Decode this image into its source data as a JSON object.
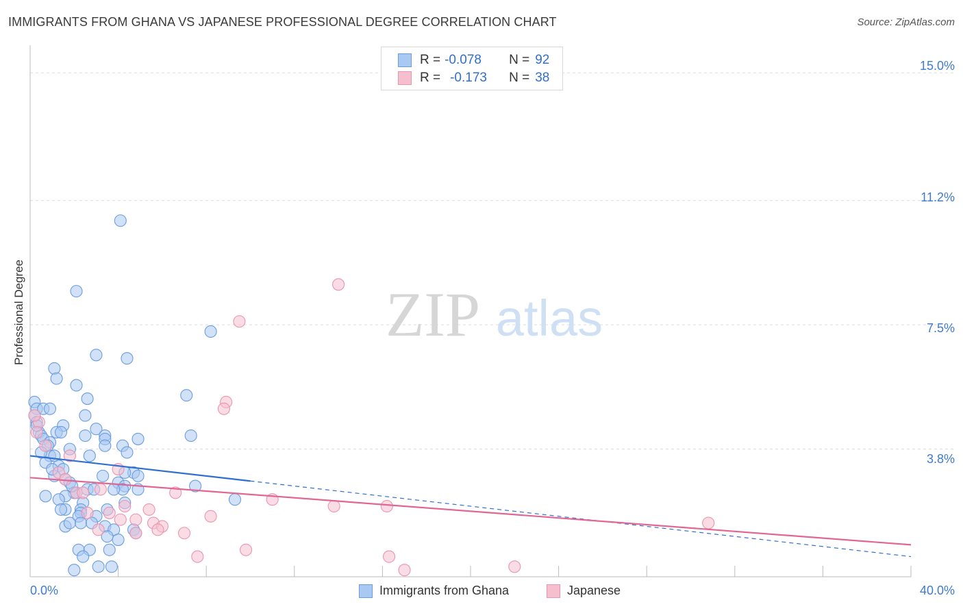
{
  "header": {
    "title": "IMMIGRANTS FROM GHANA VS JAPANESE PROFESSIONAL DEGREE CORRELATION CHART",
    "source": "Source: ZipAtlas.com"
  },
  "legend": {
    "rows": [
      {
        "r_label": "R =",
        "r_value": "-0.078",
        "n_label": "N =",
        "n_value": "92"
      },
      {
        "r_label": "R =",
        "r_value": "-0.173",
        "n_label": "N =",
        "n_value": "38"
      }
    ]
  },
  "watermark": {
    "zip": "ZIP",
    "atlas": "atlas"
  },
  "colors": {
    "ghana_fill": "#a9c8f2",
    "ghana_stroke": "#6a9de0",
    "ghana_line": "#2f6fd0",
    "japanese_fill": "#f6bfd0",
    "japanese_stroke": "#ea94b0",
    "japanese_line": "#e06792",
    "tick_text": "#3d7bd1"
  },
  "chart_data": {
    "type": "scatter",
    "title": "IMMIGRANTS FROM GHANA VS JAPANESE PROFESSIONAL DEGREE CORRELATION CHART",
    "xlabel": "",
    "ylabel": "Professional Degree",
    "xlim": [
      0,
      40
    ],
    "ylim": [
      0,
      15.7
    ],
    "x_tick_labels": [
      "0.0%",
      "40.0%"
    ],
    "y_ticks": [
      3.8,
      7.5,
      11.2,
      15.0
    ],
    "y_tick_labels": [
      "3.8%",
      "7.5%",
      "11.2%",
      "15.0%"
    ],
    "grid": true,
    "legend_position": "top-center",
    "series": [
      {
        "name": "Immigrants from Ghana",
        "r": -0.078,
        "n": 92,
        "trend": {
          "x0": 0,
          "y0": 3.6,
          "x1": 40,
          "y1": 0.6,
          "solid_until_x": 10
        },
        "points": [
          [
            4.1,
            10.6
          ],
          [
            2.1,
            8.5
          ],
          [
            8.2,
            7.3
          ],
          [
            3.0,
            6.6
          ],
          [
            4.4,
            6.5
          ],
          [
            1.1,
            6.2
          ],
          [
            1.2,
            5.9
          ],
          [
            2.1,
            5.7
          ],
          [
            2.6,
            5.3
          ],
          [
            7.1,
            5.4
          ],
          [
            0.2,
            5.2
          ],
          [
            0.3,
            5.0
          ],
          [
            0.6,
            5.0
          ],
          [
            0.9,
            5.0
          ],
          [
            2.5,
            4.8
          ],
          [
            0.2,
            4.8
          ],
          [
            0.3,
            4.6
          ],
          [
            1.5,
            4.5
          ],
          [
            3.0,
            4.4
          ],
          [
            1.2,
            4.3
          ],
          [
            1.4,
            4.3
          ],
          [
            0.4,
            4.3
          ],
          [
            0.5,
            4.2
          ],
          [
            2.5,
            4.2
          ],
          [
            3.4,
            4.2
          ],
          [
            4.9,
            4.1
          ],
          [
            7.3,
            4.2
          ],
          [
            0.6,
            4.1
          ],
          [
            0.9,
            4.0
          ],
          [
            3.4,
            4.1
          ],
          [
            0.8,
            3.9
          ],
          [
            3.4,
            3.9
          ],
          [
            4.2,
            3.9
          ],
          [
            1.8,
            3.8
          ],
          [
            4.4,
            3.7
          ],
          [
            2.7,
            3.6
          ],
          [
            0.9,
            3.6
          ],
          [
            1.1,
            3.6
          ],
          [
            0.7,
            3.4
          ],
          [
            1.3,
            3.3
          ],
          [
            1.5,
            3.2
          ],
          [
            4.7,
            3.1
          ],
          [
            3.3,
            3.0
          ],
          [
            1.1,
            3.0
          ],
          [
            4.9,
            3.0
          ],
          [
            1.6,
            2.9
          ],
          [
            4.0,
            2.8
          ],
          [
            1.8,
            2.8
          ],
          [
            7.5,
            2.7
          ],
          [
            4.3,
            2.7
          ],
          [
            4.2,
            2.6
          ],
          [
            4.9,
            2.6
          ],
          [
            2.1,
            2.5
          ],
          [
            2.0,
            2.5
          ],
          [
            1.6,
            2.4
          ],
          [
            0.7,
            2.4
          ],
          [
            9.3,
            2.3
          ],
          [
            1.3,
            2.3
          ],
          [
            2.4,
            2.2
          ],
          [
            4.3,
            2.2
          ],
          [
            2.3,
            2.0
          ],
          [
            1.6,
            2.0
          ],
          [
            3.5,
            2.0
          ],
          [
            2.3,
            1.9
          ],
          [
            2.2,
            1.8
          ],
          [
            3.0,
            1.8
          ],
          [
            2.3,
            1.6
          ],
          [
            1.6,
            1.5
          ],
          [
            1.8,
            1.6
          ],
          [
            3.4,
            1.5
          ],
          [
            3.8,
            1.4
          ],
          [
            4.7,
            1.4
          ],
          [
            4.8,
            1.3
          ],
          [
            3.5,
            1.2
          ],
          [
            4.0,
            1.1
          ],
          [
            2.2,
            0.8
          ],
          [
            3.6,
            0.8
          ],
          [
            2.7,
            0.8
          ],
          [
            2.4,
            0.6
          ],
          [
            2.0,
            0.2
          ],
          [
            3.1,
            0.3
          ],
          [
            3.7,
            0.3
          ],
          [
            1.4,
            2.0
          ],
          [
            2.6,
            2.6
          ],
          [
            0.3,
            4.5
          ],
          [
            1.0,
            3.2
          ],
          [
            3.8,
            2.6
          ],
          [
            4.3,
            3.1
          ],
          [
            2.9,
            2.6
          ],
          [
            0.5,
            3.7
          ],
          [
            1.9,
            2.7
          ],
          [
            2.8,
            1.6
          ]
        ]
      },
      {
        "name": "Japanese",
        "r": -0.173,
        "n": 38,
        "trend": {
          "x0": 0,
          "y0": 2.95,
          "x1": 40,
          "y1": 0.95,
          "solid_until_x": 40
        },
        "points": [
          [
            14.0,
            8.7
          ],
          [
            9.5,
            7.6
          ],
          [
            8.9,
            5.2
          ],
          [
            8.8,
            5.0
          ],
          [
            0.4,
            4.6
          ],
          [
            0.3,
            4.3
          ],
          [
            0.7,
            3.9
          ],
          [
            1.8,
            3.6
          ],
          [
            4.0,
            3.2
          ],
          [
            1.3,
            3.1
          ],
          [
            1.6,
            2.9
          ],
          [
            2.1,
            2.5
          ],
          [
            2.4,
            2.5
          ],
          [
            3.2,
            2.6
          ],
          [
            6.6,
            2.5
          ],
          [
            11.0,
            2.3
          ],
          [
            13.8,
            2.1
          ],
          [
            16.2,
            2.1
          ],
          [
            4.3,
            2.1
          ],
          [
            5.4,
            2.0
          ],
          [
            2.6,
            1.9
          ],
          [
            4.1,
            1.7
          ],
          [
            8.2,
            1.8
          ],
          [
            4.8,
            1.7
          ],
          [
            3.6,
            1.9
          ],
          [
            5.6,
            1.6
          ],
          [
            6.0,
            1.5
          ],
          [
            3.1,
            1.4
          ],
          [
            4.8,
            1.3
          ],
          [
            5.8,
            1.4
          ],
          [
            7.0,
            1.3
          ],
          [
            30.8,
            1.6
          ],
          [
            9.8,
            0.8
          ],
          [
            7.6,
            0.6
          ],
          [
            16.3,
            0.6
          ],
          [
            22.0,
            0.3
          ],
          [
            17.0,
            0.2
          ],
          [
            0.2,
            4.8
          ]
        ]
      }
    ]
  }
}
